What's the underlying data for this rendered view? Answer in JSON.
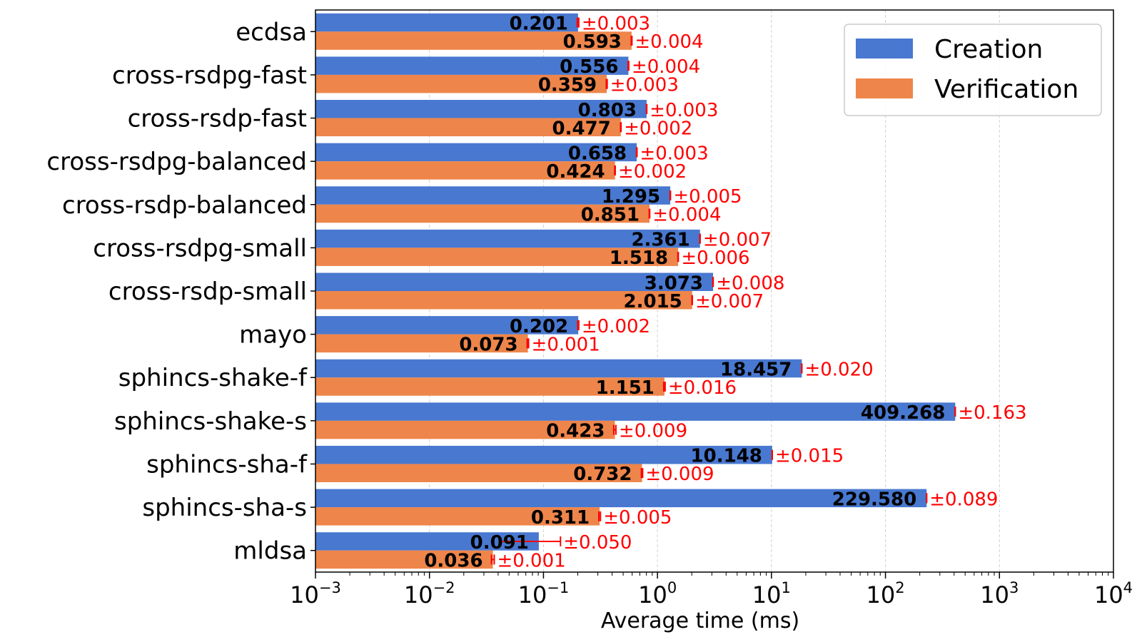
{
  "chart_data": {
    "type": "bar",
    "orientation": "horizontal",
    "xscale": "log",
    "xlim": [
      0.001,
      10000
    ],
    "xticks": [
      {
        "base": "10",
        "exp": "−3"
      },
      {
        "base": "10",
        "exp": "−2"
      },
      {
        "base": "10",
        "exp": "−1"
      },
      {
        "base": "10",
        "exp": "0"
      },
      {
        "base": "10",
        "exp": "1"
      },
      {
        "base": "10",
        "exp": "2"
      },
      {
        "base": "10",
        "exp": "3"
      },
      {
        "base": "10",
        "exp": "4"
      }
    ],
    "xlabel": "Average time (ms)",
    "ylabel": "",
    "title": "",
    "grid": "x-major",
    "legend_position": "top-right",
    "categories": [
      "ecdsa",
      "cross-rsdpg-fast",
      "cross-rsdp-fast",
      "cross-rsdpg-balanced",
      "cross-rsdp-balanced",
      "cross-rsdpg-small",
      "cross-rsdp-small",
      "mayo",
      "sphincs-shake-f",
      "sphincs-shake-s",
      "sphincs-sha-f",
      "sphincs-sha-s",
      "mldsa"
    ],
    "series": [
      {
        "name": "Creation",
        "color": "#4878d0",
        "values": [
          0.201,
          0.556,
          0.803,
          0.658,
          1.295,
          2.361,
          3.073,
          0.202,
          18.457,
          409.268,
          10.148,
          229.58,
          0.091
        ],
        "value_labels": [
          "0.201",
          "0.556",
          "0.803",
          "0.658",
          "1.295",
          "2.361",
          "3.073",
          "0.202",
          "18.457",
          "409.268",
          "10.148",
          "229.580",
          "0.091"
        ],
        "errors": [
          0.003,
          0.004,
          0.003,
          0.003,
          0.005,
          0.007,
          0.008,
          0.002,
          0.02,
          0.163,
          0.015,
          0.089,
          0.05
        ],
        "error_labels": [
          "±0.003",
          "±0.004",
          "±0.003",
          "±0.003",
          "±0.005",
          "±0.007",
          "±0.008",
          "±0.002",
          "±0.020",
          "±0.163",
          "±0.015",
          "±0.089",
          "±0.050"
        ]
      },
      {
        "name": "Verification",
        "color": "#ee854a",
        "values": [
          0.593,
          0.359,
          0.477,
          0.424,
          0.851,
          1.518,
          2.015,
          0.073,
          1.151,
          0.423,
          0.732,
          0.311,
          0.036
        ],
        "value_labels": [
          "0.593",
          "0.359",
          "0.477",
          "0.424",
          "0.851",
          "1.518",
          "2.015",
          "0.073",
          "1.151",
          "0.423",
          "0.732",
          "0.311",
          "0.036"
        ],
        "errors": [
          0.004,
          0.003,
          0.002,
          0.002,
          0.004,
          0.006,
          0.007,
          0.001,
          0.016,
          0.009,
          0.009,
          0.005,
          0.001
        ],
        "error_labels": [
          "±0.004",
          "±0.003",
          "±0.002",
          "±0.002",
          "±0.004",
          "±0.006",
          "±0.007",
          "±0.001",
          "±0.016",
          "±0.009",
          "±0.009",
          "±0.005",
          "±0.001"
        ]
      }
    ],
    "error_color": "#ff0000"
  }
}
